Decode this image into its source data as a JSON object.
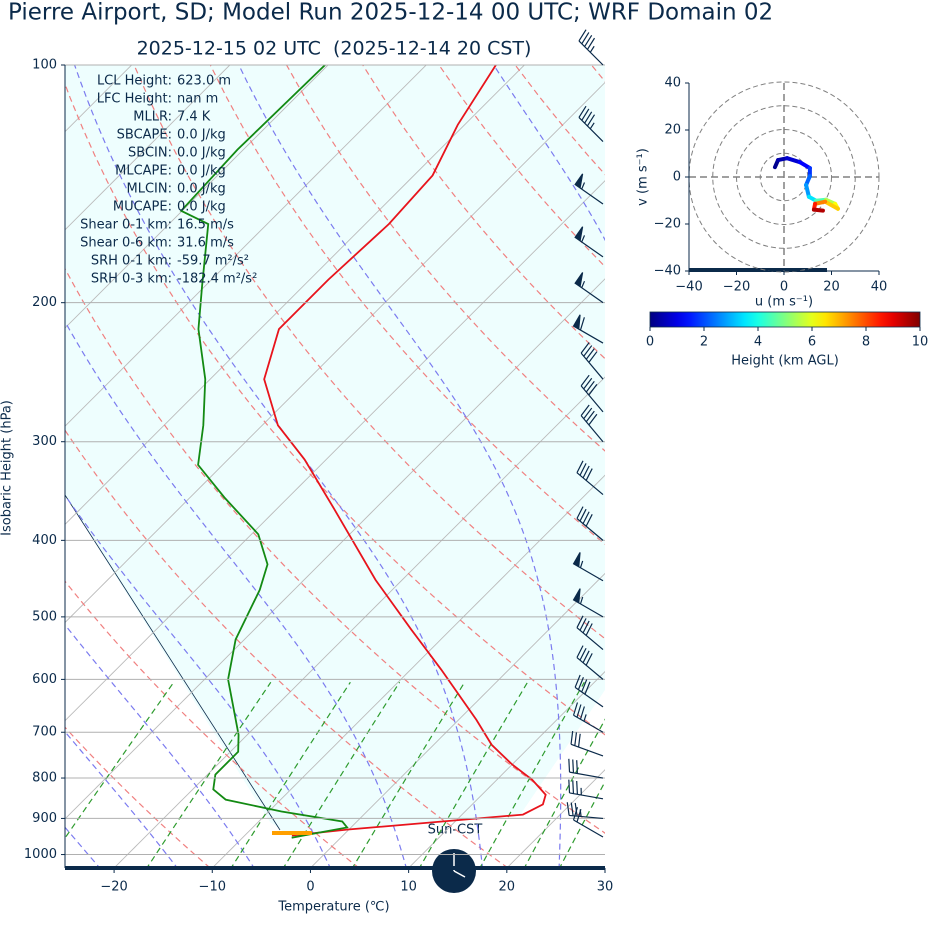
{
  "chart_data": [
    {
      "type": "skewt",
      "title": "Pierre Airport, SD; Model Run 2025-12-14 00 UTC; WRF Domain 02",
      "subtitle": "2025-12-15 02 UTC  (2025-12-14 20 CST)",
      "x_label": "Temperature (℃)",
      "y_label": "Isobaric Height (hPa)",
      "xlim": [
        -25,
        30
      ],
      "xticks": [
        {
          "value": -20,
          "label": "−20"
        },
        {
          "value": -10,
          "label": "−10"
        },
        0,
        10,
        20,
        30
      ],
      "ylim": [
        1040,
        100
      ],
      "log_y": true,
      "grid": true,
      "yticks": [
        100,
        200,
        300,
        400,
        500,
        600,
        700,
        800,
        900,
        1000
      ],
      "series": [
        {
          "color": "#e8141c",
          "x": [
            -5.2,
            -0.2,
            16.2,
            17.2,
            16.5,
            13.6,
            10.0,
            5.9,
            1.8,
            -6.9,
            -14.0,
            -22.7,
            -34.0,
            -42.2,
            -48.4,
            -54.5,
            -58.1,
            -58.1,
            -57.6,
            -58.1,
            -60.7,
            -62.9
          ],
          "y": [
            946,
            930,
            890,
            864,
            840,
            804,
            769,
            726,
            675,
            583,
            519,
            449,
            366,
            316,
            286,
            250,
            216,
            187,
            159,
            138,
            119,
            100
          ]
        },
        {
          "color": "#138a13",
          "x": [
            -5.0,
            -0.4,
            -1.5,
            -8.7,
            -15.6,
            -17.9,
            -19.2,
            -19.2,
            -20.9,
            -27.6,
            -30.9,
            -33.5,
            -35.3,
            -39.3,
            -46.5,
            -52.5,
            -56.0,
            -60.5,
            -66.3,
            -70.4,
            -76.0,
            -80.1,
            -80.6,
            -80.3
          ],
          "y": [
            952,
            924,
            908,
            882,
            852,
            827,
            792,
            741,
            705,
            600,
            534,
            462,
            429,
            393,
            353,
            321,
            286,
            250,
            216,
            190,
            159,
            153,
            128,
            100
          ]
        }
      ],
      "wind": {
        "color": "#0b2a4a",
        "pressure": [
          100,
          125,
          150,
          175,
          200,
          225,
          250,
          275,
          300,
          350,
          400,
          450,
          500,
          550,
          600,
          650,
          700,
          750,
          800,
          850,
          900,
          950
        ],
        "speed": [
          45,
          45,
          55,
          55,
          55,
          60,
          40,
          40,
          40,
          40,
          40,
          55,
          55,
          40,
          40,
          40,
          35,
          30,
          30,
          35,
          35,
          20
        ],
        "direction": [
          315,
          315,
          305,
          305,
          305,
          300,
          320,
          320,
          320,
          310,
          310,
          300,
          300,
          310,
          310,
          305,
          300,
          290,
          280,
          280,
          275,
          300
        ]
      },
      "annotation": "Sun-CST",
      "parameters": [
        [
          "LCL Height:",
          "623.0 m"
        ],
        [
          "LFC Height:",
          "nan m"
        ],
        [
          "MLLR:",
          "7.4 K"
        ],
        [
          "SBCAPE:",
          "0.0 J/kg"
        ],
        [
          "SBCIN:",
          "0.0 J/kg"
        ],
        [
          "MLCAPE:",
          "0.0 J/kg"
        ],
        [
          "MLCIN:",
          "0.0 J/kg"
        ],
        [
          "MUCAPE:",
          "0.0 J/kg"
        ],
        [
          "Shear 0-1 km:",
          "16.5 m/s"
        ],
        [
          "Shear 0-6 km:",
          "31.6 m/s"
        ],
        [
          "SRH 0-1 km:",
          "-59.7 m²/s²"
        ],
        [
          "SRH 0-3 km:",
          "-182.4 m²/s²"
        ]
      ]
    },
    {
      "type": "hodograph",
      "x_label": "u (m s⁻¹)",
      "y_label": "v (m s⁻¹)",
      "xlim": [
        -40,
        40
      ],
      "ylim": [
        -40,
        40
      ],
      "xticks": [
        {
          "value": -40,
          "label": "−40"
        },
        {
          "value": -20,
          "label": "−20"
        },
        0,
        20,
        40
      ],
      "yticks": [
        {
          "value": -40,
          "label": "−40"
        },
        {
          "value": -20,
          "label": "−20"
        },
        0,
        20,
        40
      ],
      "u": [
        -3.8,
        -2.5,
        1.3,
        6.7,
        10.9,
        10.9,
        9.3,
        10.5,
        13.5,
        17.7,
        21.5,
        22.7,
        17.3,
        13.1,
        12.6,
        16.4
      ],
      "v": [
        4.2,
        7.2,
        8.0,
        6.3,
        3.8,
        0.4,
        -3.4,
        -8.4,
        -10.1,
        -9.7,
        -11.4,
        -13.5,
        -10.5,
        -11.4,
        -13.9,
        -14.3
      ],
      "heights": [
        0,
        0.3,
        0.6,
        1,
        1.5,
        2,
        2.5,
        3,
        4,
        5,
        6,
        6.5,
        7,
        8,
        9,
        10
      ],
      "colorbar": {
        "label": "Height (km AGL)",
        "lim": [
          0,
          10
        ],
        "ticks": [
          0,
          2,
          4,
          6,
          8,
          10
        ]
      }
    }
  ]
}
